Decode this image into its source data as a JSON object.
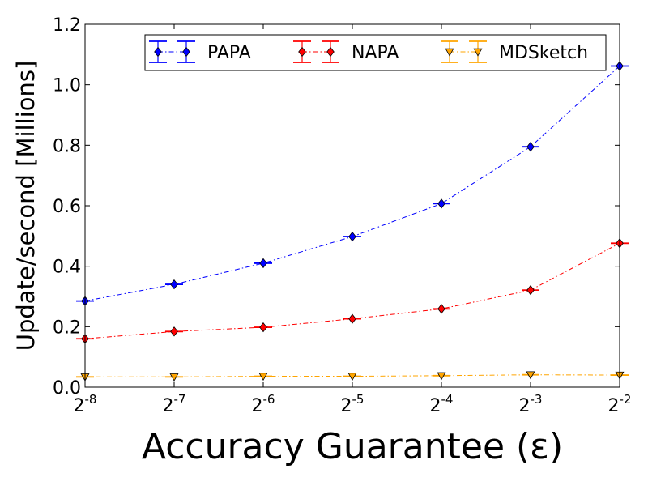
{
  "chart_data": {
    "type": "line",
    "title": "",
    "xlabel": "Accuracy Guarantee (ε)",
    "ylabel": "Update/second [Millions]",
    "x": [
      -8,
      -7,
      -6,
      -5,
      -4,
      -3,
      -2
    ],
    "x_tick_labels": [
      {
        "base": "2",
        "exp": "-8"
      },
      {
        "base": "2",
        "exp": "-7"
      },
      {
        "base": "2",
        "exp": "-6"
      },
      {
        "base": "2",
        "exp": "-5"
      },
      {
        "base": "2",
        "exp": "-4"
      },
      {
        "base": "2",
        "exp": "-3"
      },
      {
        "base": "2",
        "exp": "-2"
      }
    ],
    "xscale": "log2",
    "xlim": [
      -8,
      -2
    ],
    "ylim": [
      0,
      1.2
    ],
    "y_ticks": [
      "0.0",
      "0.2",
      "0.4",
      "0.6",
      "0.8",
      "1.0",
      "1.2"
    ],
    "grid": false,
    "legend_position": "top",
    "series": [
      {
        "name": "PAPA",
        "color": "#0000ff",
        "marker": "diamond",
        "line_style": "dash-dot",
        "values": [
          0.285,
          0.34,
          0.41,
          0.498,
          0.607,
          0.795,
          1.062
        ]
      },
      {
        "name": "NAPA",
        "color": "#ff0000",
        "marker": "diamond",
        "line_style": "dash-dot",
        "values": [
          0.16,
          0.184,
          0.198,
          0.226,
          0.259,
          0.321,
          0.476
        ]
      },
      {
        "name": "MDSketch",
        "color": "#ffa500",
        "marker": "triangle-down",
        "line_style": "dash-dot",
        "values": [
          0.034,
          0.034,
          0.036,
          0.036,
          0.038,
          0.041,
          0.04
        ]
      }
    ]
  }
}
